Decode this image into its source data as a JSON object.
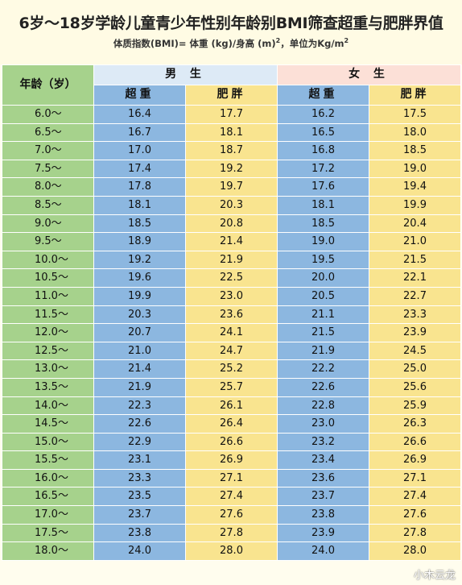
{
  "title": "6岁～18岁学龄儿童青少年性别年龄别BMI筛查超重与肥胖界值",
  "subtitle_prefix": "体质指数(BMI)= 体重 (kg)/身高 (m)",
  "subtitle_sup": "2",
  "subtitle_mid": "，单位为Kg/m",
  "subtitle_sup2": "2",
  "headers": {
    "age": "年龄（岁）",
    "male": "男 生",
    "female": "女 生",
    "overweight": "超重",
    "obese": "肥胖"
  },
  "rows": [
    {
      "age": "6.0～",
      "m_over": "16.4",
      "m_obese": "17.7",
      "f_over": "16.2",
      "f_obese": "17.5"
    },
    {
      "age": "6.5～",
      "m_over": "16.7",
      "m_obese": "18.1",
      "f_over": "16.5",
      "f_obese": "18.0"
    },
    {
      "age": "7.0～",
      "m_over": "17.0",
      "m_obese": "18.7",
      "f_over": "16.8",
      "f_obese": "18.5"
    },
    {
      "age": "7.5～",
      "m_over": "17.4",
      "m_obese": "19.2",
      "f_over": "17.2",
      "f_obese": "19.0"
    },
    {
      "age": "8.0～",
      "m_over": "17.8",
      "m_obese": "19.7",
      "f_over": "17.6",
      "f_obese": "19.4"
    },
    {
      "age": "8.5～",
      "m_over": "18.1",
      "m_obese": "20.3",
      "f_over": "18.1",
      "f_obese": "19.9"
    },
    {
      "age": "9.0～",
      "m_over": "18.5",
      "m_obese": "20.8",
      "f_over": "18.5",
      "f_obese": "20.4"
    },
    {
      "age": "9.5～",
      "m_over": "18.9",
      "m_obese": "21.4",
      "f_over": "19.0",
      "f_obese": "21.0"
    },
    {
      "age": "10.0～",
      "m_over": "19.2",
      "m_obese": "21.9",
      "f_over": "19.5",
      "f_obese": "21.5"
    },
    {
      "age": "10.5～",
      "m_over": "19.6",
      "m_obese": "22.5",
      "f_over": "20.0",
      "f_obese": "22.1"
    },
    {
      "age": "11.0～",
      "m_over": "19.9",
      "m_obese": "23.0",
      "f_over": "20.5",
      "f_obese": "22.7"
    },
    {
      "age": "11.5～",
      "m_over": "20.3",
      "m_obese": "23.6",
      "f_over": "21.1",
      "f_obese": "23.3"
    },
    {
      "age": "12.0～",
      "m_over": "20.7",
      "m_obese": "24.1",
      "f_over": "21.5",
      "f_obese": "23.9"
    },
    {
      "age": "12.5～",
      "m_over": "21.0",
      "m_obese": "24.7",
      "f_over": "21.9",
      "f_obese": "24.5"
    },
    {
      "age": "13.0～",
      "m_over": "21.4",
      "m_obese": "25.2",
      "f_over": "22.2",
      "f_obese": "25.0"
    },
    {
      "age": "13.5～",
      "m_over": "21.9",
      "m_obese": "25.7",
      "f_over": "22.6",
      "f_obese": "25.6"
    },
    {
      "age": "14.0～",
      "m_over": "22.3",
      "m_obese": "26.1",
      "f_over": "22.8",
      "f_obese": "25.9"
    },
    {
      "age": "14.5～",
      "m_over": "22.6",
      "m_obese": "26.4",
      "f_over": "23.0",
      "f_obese": "26.3"
    },
    {
      "age": "15.0～",
      "m_over": "22.9",
      "m_obese": "26.6",
      "f_over": "23.2",
      "f_obese": "26.6"
    },
    {
      "age": "15.5～",
      "m_over": "23.1",
      "m_obese": "26.9",
      "f_over": "23.4",
      "f_obese": "26.9"
    },
    {
      "age": "16.0～",
      "m_over": "23.3",
      "m_obese": "27.1",
      "f_over": "23.6",
      "f_obese": "27.1"
    },
    {
      "age": "16.5～",
      "m_over": "23.5",
      "m_obese": "27.4",
      "f_over": "23.7",
      "f_obese": "27.4"
    },
    {
      "age": "17.0～",
      "m_over": "23.7",
      "m_obese": "27.6",
      "f_over": "23.8",
      "f_obese": "27.6"
    },
    {
      "age": "17.5～",
      "m_over": "23.8",
      "m_obese": "27.8",
      "f_over": "23.9",
      "f_obese": "27.8"
    },
    {
      "age": "18.0～",
      "m_over": "24.0",
      "m_obese": "28.0",
      "f_over": "24.0",
      "f_obese": "28.0"
    }
  ],
  "watermark": "小木云龙",
  "colors": {
    "age_green": "#a6d28c",
    "overweight_blue": "#8cb7e0",
    "obese_yellow": "#f9e48f",
    "male_header": "#ddeaf6",
    "female_header": "#fce0d7"
  }
}
